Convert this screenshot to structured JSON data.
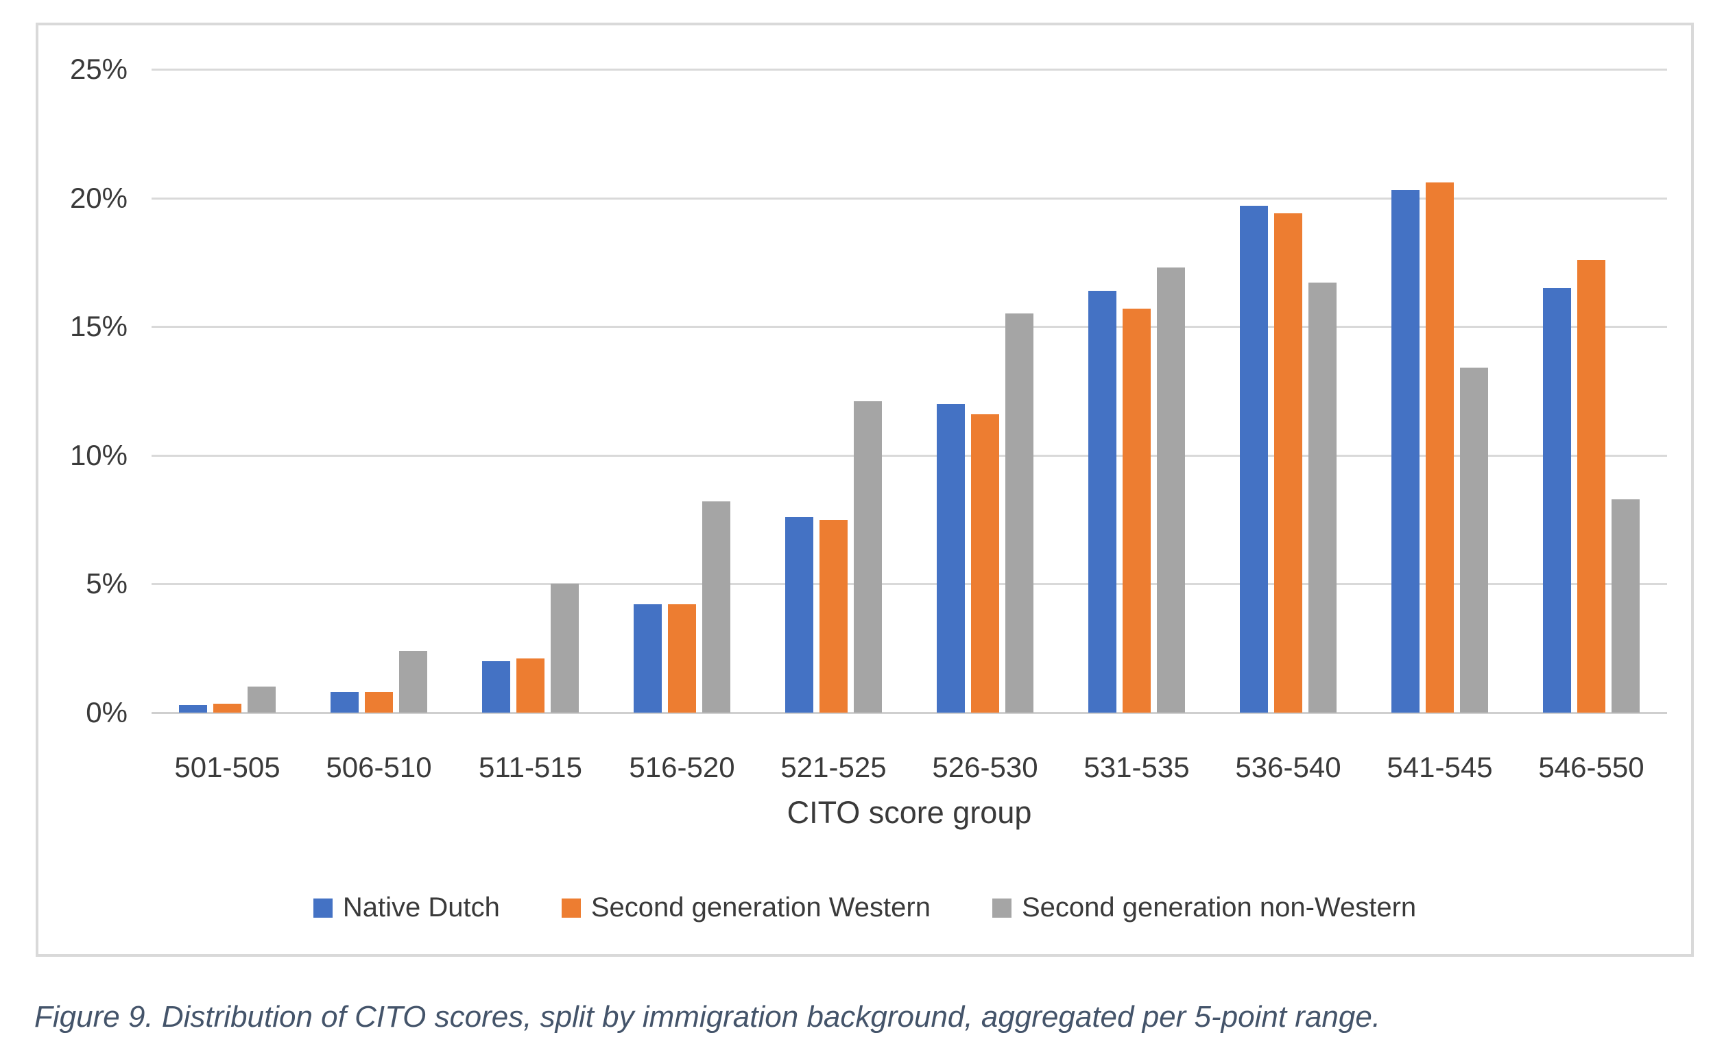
{
  "figure": {
    "caption": "Figure 9. Distribution of CITO scores, split by immigration background, aggregated per 5-point range."
  },
  "chart_data": {
    "type": "bar",
    "title": "",
    "xlabel": "CITO score group",
    "ylabel": "",
    "ylim": [
      0,
      25
    ],
    "y_tick_values": [
      0,
      5,
      10,
      15,
      20,
      25
    ],
    "y_tick_labels": [
      "0%",
      "5%",
      "10%",
      "15%",
      "20%",
      "25%"
    ],
    "grid": true,
    "legend_position": "bottom",
    "categories": [
      "501-505",
      "506-510",
      "511-515",
      "516-520",
      "521-525",
      "526-530",
      "531-535",
      "536-540",
      "541-545",
      "546-550"
    ],
    "series": [
      {
        "name": "Native Dutch",
        "color": "#4472C4",
        "values": [
          0.3,
          0.8,
          2.0,
          4.2,
          7.6,
          12.0,
          16.4,
          19.7,
          20.3,
          16.5
        ]
      },
      {
        "name": "Second generation Western",
        "color": "#ED7D31",
        "values": [
          0.35,
          0.8,
          2.1,
          4.2,
          7.5,
          11.6,
          15.7,
          19.4,
          20.6,
          17.6
        ]
      },
      {
        "name": "Second generation non-Western",
        "color": "#A5A5A5",
        "values": [
          1.0,
          2.4,
          5.0,
          8.2,
          12.1,
          15.5,
          17.3,
          16.7,
          13.4,
          8.3
        ]
      }
    ]
  },
  "colors": {
    "gridline": "#D9D9D9",
    "axis_line": "#CFCFCF",
    "chart_border": "#D9D9D9",
    "tick_text": "#3A3A3A",
    "caption_text": "#44546A"
  }
}
